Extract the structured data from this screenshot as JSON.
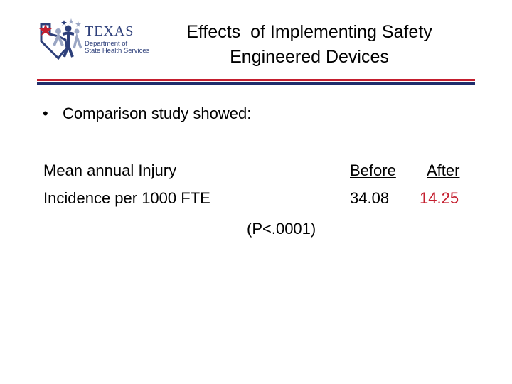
{
  "logo": {
    "state": "TEXAS",
    "dept_line1": "Department of",
    "dept_line2": "State Health Services",
    "colors": {
      "blue": "#2d3f7a",
      "red": "#c41e2e",
      "gray": "#9aa6c4"
    }
  },
  "title": {
    "line1": "Effects  of Implementing Safety",
    "line2": "Engineered Devices"
  },
  "bullet": {
    "marker": "•",
    "text": "Comparison study showed:"
  },
  "measure": {
    "label_line1": "Mean annual Injury",
    "label_line2": "Incidence per 1000 FTE",
    "p_value": "(P<.0001)"
  },
  "columns": {
    "before_header": "Before",
    "after_header": "After",
    "before_value": "34.08",
    "after_value": "14.25"
  },
  "colors": {
    "accent_red": "#c41e2e",
    "accent_blue": "#1f2d6b"
  }
}
